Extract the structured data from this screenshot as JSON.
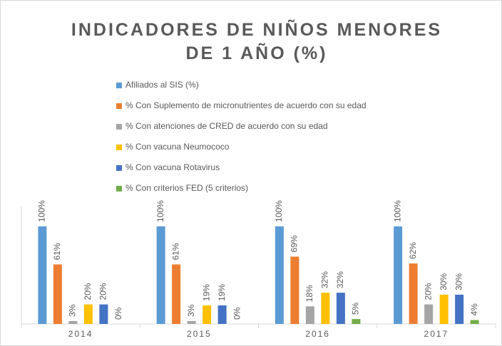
{
  "chart_data": {
    "type": "bar",
    "title": "INDICADORES DE NIÑOS MENORES DE 1 AÑO (%)",
    "categories": [
      "2014",
      "2015",
      "2016",
      "2017"
    ],
    "series": [
      {
        "name": "Afiliados al SIS (%)",
        "color": "#5b9bd5",
        "values": [
          100,
          100,
          100,
          100
        ],
        "value_labels": [
          "100%",
          "100%",
          "100%",
          "100%"
        ]
      },
      {
        "name": "% Con Suplemento de  micronutrientes de acuerdo con su edad",
        "color": "#ed7d31",
        "values": [
          61,
          61,
          69,
          62
        ],
        "value_labels": [
          "61%",
          "61%",
          "69%",
          "62%"
        ]
      },
      {
        "name": "% Con atenciones de CRED de acuerdo con su edad",
        "color": "#a5a5a5",
        "values": [
          3,
          3,
          18,
          20
        ],
        "value_labels": [
          "3%",
          "3%",
          "18%",
          "20%"
        ]
      },
      {
        "name": "% Con vacuna Neumococo",
        "color": "#ffc000",
        "values": [
          20,
          19,
          32,
          30
        ],
        "value_labels": [
          "20%",
          "19%",
          "32%",
          "30%"
        ]
      },
      {
        "name": "% Con  vacuna Rotavirus",
        "color": "#4472c4",
        "values": [
          20,
          19,
          32,
          30
        ],
        "value_labels": [
          "20%",
          "19%",
          "32%",
          "30%"
        ]
      },
      {
        "name": "% Con  criterios FED (5 criterios)",
        "color": "#70ad47",
        "values": [
          0,
          0,
          5,
          4
        ],
        "value_labels": [
          "0%",
          "0%",
          "5%",
          "4%"
        ]
      }
    ],
    "legend": "top-left"
  }
}
